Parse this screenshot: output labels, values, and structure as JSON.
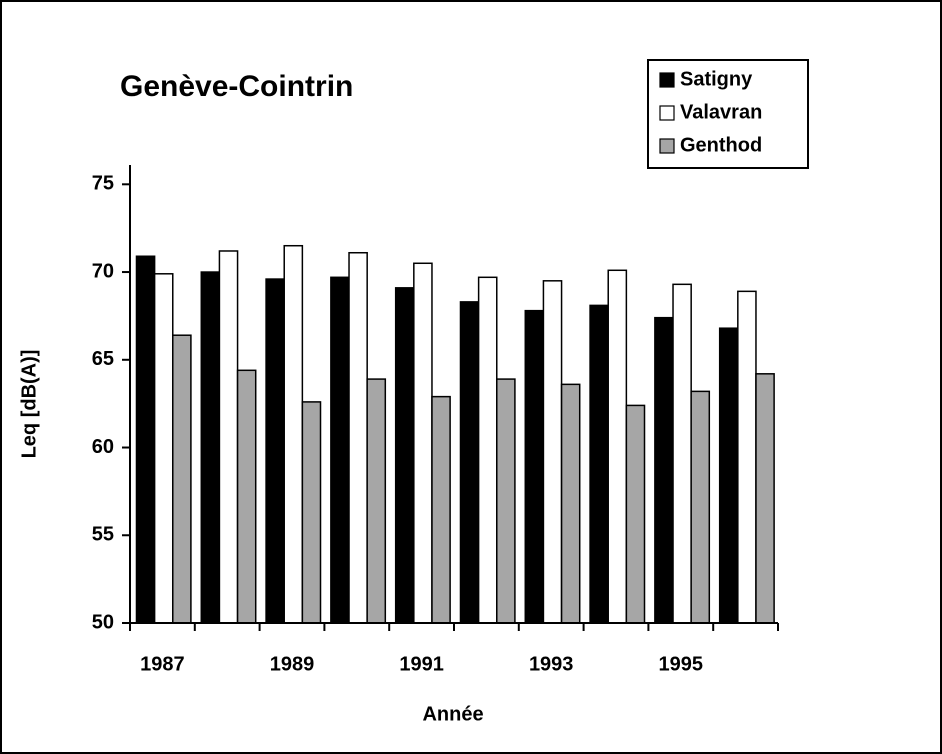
{
  "chart_data": {
    "type": "bar",
    "title": "Genève-Cointrin",
    "x_label": "Année",
    "y_label": "Leq [dB(A)]",
    "categories": [
      "1987",
      null,
      "1989",
      null,
      "1991",
      null,
      "1993",
      null,
      "1995",
      null
    ],
    "series": [
      {
        "name": "Satigny",
        "color": "#000000",
        "values": [
          70.9,
          70.0,
          69.6,
          69.7,
          69.1,
          68.3,
          67.8,
          68.1,
          67.4,
          66.8
        ]
      },
      {
        "name": "Valavran",
        "color": "#ffffff",
        "values": [
          69.9,
          71.2,
          71.5,
          71.1,
          70.5,
          69.7,
          69.5,
          70.1,
          69.3,
          68.9
        ]
      },
      {
        "name": "Genthod",
        "color": "#a6a6a6",
        "values": [
          66.4,
          64.4,
          62.6,
          63.9,
          62.9,
          63.9,
          63.6,
          62.4,
          63.2,
          64.2
        ]
      }
    ],
    "ylim": [
      50,
      76.1
    ],
    "yticks": [
      50,
      55,
      60,
      65,
      70,
      75
    ],
    "grid": false,
    "legend": "top-right"
  }
}
